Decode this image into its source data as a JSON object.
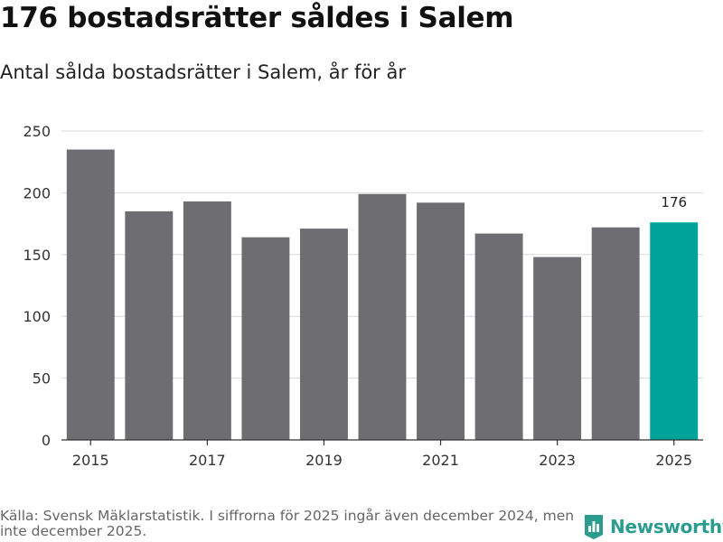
{
  "header": {
    "title": "176 bostadsrätter såldes i Salem",
    "subtitle": "Antal sålda bostadsrätter i Salem, år för år"
  },
  "chart_data": {
    "type": "bar",
    "title": "176 bostadsrätter såldes i Salem",
    "subtitle": "Antal sålda bostadsrätter i Salem, år för år",
    "categories": [
      "2015",
      "2016",
      "2017",
      "2018",
      "2019",
      "2020",
      "2021",
      "2022",
      "2023",
      "2024",
      "2025"
    ],
    "values": [
      235,
      185,
      193,
      164,
      171,
      199,
      192,
      167,
      148,
      172,
      176
    ],
    "x_tick_labels": [
      "2015",
      "2017",
      "2019",
      "2021",
      "2023",
      "2025"
    ],
    "y_ticks": [
      0,
      50,
      100,
      150,
      200,
      250
    ],
    "ylim": [
      0,
      250
    ],
    "xlabel": "",
    "ylabel": "",
    "grid": true,
    "highlight_index": 10,
    "highlight_label": "176",
    "colors": {
      "bar": "#6e6d72",
      "highlight": "#00a39a",
      "grid": "#d9d9d9",
      "axis": "#333333"
    }
  },
  "footer": {
    "source": "Källa: Svensk Mäklarstatistik. I siffrorna för 2025 ingår även december 2024, men inte december 2025."
  },
  "brand": {
    "name": "Newsworthy",
    "icon": "newsworthy-logo-icon",
    "color": "#2a9d8f"
  }
}
